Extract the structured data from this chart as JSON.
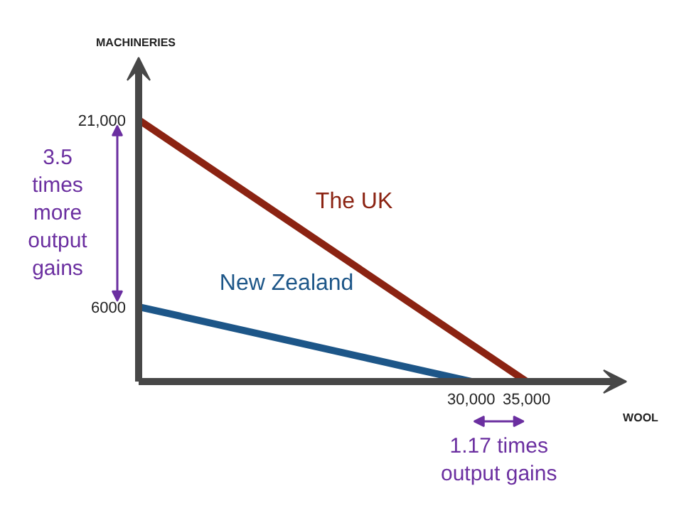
{
  "chart_data": {
    "type": "line",
    "xlabel": "WOOL",
    "ylabel": "MACHINERIES",
    "xlim": [
      0,
      44000
    ],
    "ylim": [
      0,
      26000
    ],
    "xticks": [
      {
        "value": 30000,
        "label": "30,000"
      },
      {
        "value": 35000,
        "label": "35,000"
      }
    ],
    "yticks": [
      6000,
      {
        "value": 21000,
        "label": "21,000"
      }
    ],
    "series": [
      {
        "name": "The UK",
        "color": "#8b2312",
        "x": [
          0,
          35000
        ],
        "values": [
          21000,
          0
        ]
      },
      {
        "name": "New Zealand",
        "color": "#1d5688",
        "x": [
          0,
          30000
        ],
        "values": [
          6000,
          0
        ]
      }
    ],
    "annotations": [
      "3.5\ntimes\nmore\noutput\ngains",
      "1.17 times\noutput gains"
    ],
    "grid": false,
    "legend": false,
    "marker": "none",
    "line_style": "solid"
  }
}
